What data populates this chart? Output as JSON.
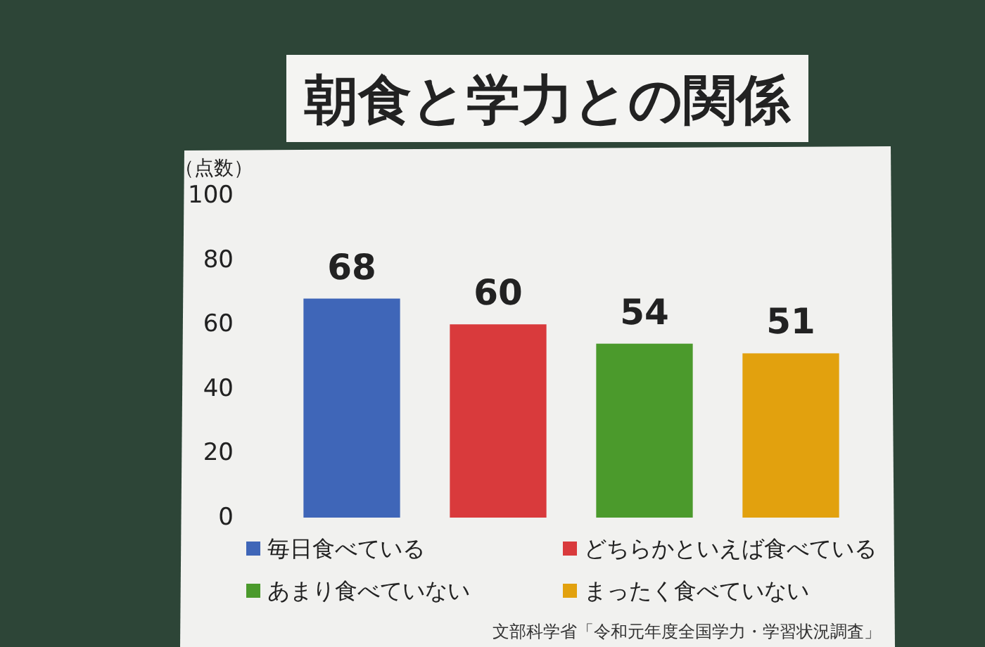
{
  "chart_data": {
    "type": "bar",
    "title": "朝食と学力との関係",
    "ylabel": "（点数）",
    "categories": [
      null,
      null,
      null,
      null
    ],
    "series": [
      {
        "name": "毎日食べている",
        "color": "#3f66b8",
        "values": [
          68,
          null,
          null,
          null
        ]
      },
      {
        "name": "どちらかといえば食べている",
        "color": "#d93a3c",
        "values": [
          null,
          60,
          null,
          null
        ]
      },
      {
        "name": "あまり食べていない",
        "color": "#4b9a2c",
        "values": [
          null,
          null,
          54,
          null
        ]
      },
      {
        "name": "まったく食べていない",
        "color": "#e2a10e",
        "values": [
          null,
          null,
          null,
          51
        ]
      }
    ],
    "stacked": true,
    "ylim": [
      0,
      100
    ],
    "yticks": [
      0,
      20,
      40,
      60,
      80,
      100
    ],
    "data_labels": true,
    "legend": "bottom",
    "tick_labels": "y",
    "annotations": [
      "文部科学省「令和元年度全国学力・学習状況調査」"
    ]
  }
}
